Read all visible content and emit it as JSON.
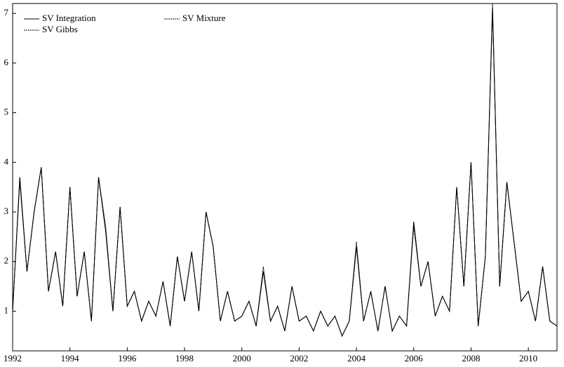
{
  "chart_data": {
    "type": "line",
    "x": [
      1992,
      1992.25,
      1992.5,
      1992.75,
      1993,
      1993.25,
      1993.5,
      1993.75,
      1994,
      1994.25,
      1994.5,
      1994.75,
      1995,
      1995.25,
      1995.5,
      1995.75,
      1996,
      1996.25,
      1996.5,
      1996.75,
      1997,
      1997.25,
      1997.5,
      1997.75,
      1998,
      1998.25,
      1998.5,
      1998.75,
      1999,
      1999.25,
      1999.5,
      1999.75,
      2000,
      2000.25,
      2000.5,
      2000.75,
      2001,
      2001.25,
      2001.5,
      2001.75,
      2002,
      2002.25,
      2002.5,
      2002.75,
      2003,
      2003.25,
      2003.5,
      2003.75,
      2004,
      2004.25,
      2004.5,
      2004.75,
      2005,
      2005.25,
      2005.5,
      2005.75,
      2006,
      2006.25,
      2006.5,
      2006.75,
      2007,
      2007.25,
      2007.5,
      2007.75,
      2008,
      2008.25,
      2008.5,
      2008.75,
      2009,
      2009.25,
      2009.5,
      2009.75,
      2010,
      2010.25,
      2010.5,
      2010.75,
      2011
    ],
    "series": [
      {
        "name": "SV Integration",
        "color": "#000000",
        "style": "solid",
        "values": [
          1.0,
          3.7,
          1.8,
          3.0,
          3.9,
          1.4,
          2.2,
          1.1,
          3.5,
          1.3,
          2.2,
          0.8,
          3.7,
          2.6,
          1.0,
          3.1,
          1.1,
          1.4,
          0.8,
          1.2,
          0.9,
          1.6,
          0.7,
          2.1,
          1.2,
          2.2,
          1.0,
          3.0,
          2.3,
          0.8,
          1.4,
          0.8,
          0.9,
          1.2,
          0.7,
          1.8,
          0.8,
          1.1,
          0.6,
          1.5,
          0.8,
          0.9,
          0.6,
          1.0,
          0.7,
          0.9,
          0.5,
          0.8,
          2.3,
          0.8,
          1.4,
          0.6,
          1.5,
          0.6,
          0.9,
          0.7,
          2.8,
          1.5,
          2.0,
          0.9,
          1.3,
          1.0,
          3.5,
          1.5,
          4.0,
          0.7,
          2.1,
          7.1,
          1.5,
          3.6,
          2.4,
          1.2,
          1.4,
          0.8,
          1.9,
          0.8,
          0.7
        ]
      },
      {
        "name": "SV Mixture",
        "color": "#000000",
        "style": "dashed",
        "values": [
          1.0,
          3.7,
          1.8,
          3.0,
          3.9,
          1.4,
          2.2,
          1.1,
          3.5,
          1.3,
          2.2,
          0.8,
          3.7,
          2.7,
          1.0,
          3.1,
          1.1,
          1.4,
          0.8,
          1.2,
          0.9,
          1.6,
          0.7,
          2.1,
          1.2,
          2.2,
          1.0,
          3.0,
          2.3,
          0.8,
          1.4,
          0.8,
          0.9,
          1.2,
          0.7,
          1.9,
          0.8,
          1.1,
          0.6,
          1.5,
          0.8,
          0.9,
          0.6,
          1.0,
          0.7,
          0.9,
          0.5,
          0.8,
          2.4,
          0.8,
          1.4,
          0.6,
          1.5,
          0.6,
          0.9,
          0.7,
          2.8,
          1.5,
          2.0,
          0.9,
          1.3,
          1.0,
          3.5,
          1.5,
          4.0,
          0.7,
          2.1,
          7.2,
          1.5,
          3.6,
          2.4,
          1.2,
          1.4,
          0.8,
          1.9,
          0.8,
          0.7
        ]
      },
      {
        "name": "SV Gibbs",
        "color": "#000000",
        "style": "dashed",
        "values": [
          1.0,
          3.6,
          1.8,
          3.0,
          3.9,
          1.4,
          2.2,
          1.1,
          3.5,
          1.3,
          2.2,
          0.8,
          3.7,
          2.6,
          1.0,
          3.1,
          1.1,
          1.4,
          0.8,
          1.2,
          0.9,
          1.6,
          0.7,
          2.1,
          1.2,
          2.2,
          1.0,
          3.0,
          2.3,
          0.8,
          1.4,
          0.8,
          0.9,
          1.2,
          0.7,
          1.8,
          0.8,
          1.1,
          0.6,
          1.5,
          0.8,
          0.9,
          0.6,
          1.0,
          0.7,
          0.9,
          0.5,
          0.8,
          2.3,
          0.8,
          1.4,
          0.6,
          1.5,
          0.6,
          0.9,
          0.7,
          2.7,
          1.5,
          2.0,
          0.9,
          1.3,
          1.0,
          3.5,
          1.5,
          4.0,
          0.7,
          2.1,
          7.1,
          1.5,
          3.6,
          2.4,
          1.2,
          1.4,
          0.8,
          1.9,
          0.8,
          0.7
        ]
      }
    ],
    "xlim": [
      1992,
      2011
    ],
    "xticks": [
      1992,
      1994,
      1996,
      1998,
      2000,
      2002,
      2004,
      2006,
      2008,
      2010
    ],
    "ylim": [
      0.2,
      7.2
    ],
    "yticks": [
      1,
      2,
      3,
      4,
      5,
      6,
      7
    ],
    "grid": false,
    "legend": "upper left"
  }
}
